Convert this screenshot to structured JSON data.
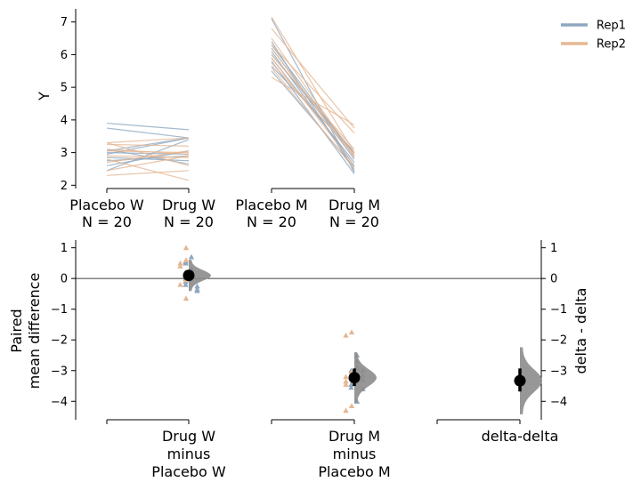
{
  "chart_data": [
    {
      "type": "line",
      "ylabel": "Y",
      "ylim": [
        1.9,
        7.4
      ],
      "yticks": [
        2,
        3,
        4,
        5,
        6,
        7
      ],
      "groups": [
        {
          "label1": "Placebo W",
          "label2": "N = 20"
        },
        {
          "label1": "Drug W",
          "label2": "N = 20"
        },
        {
          "label1": "Placebo M",
          "label2": "N = 20"
        },
        {
          "label1": "Drug M",
          "label2": "N = 20"
        }
      ],
      "legend": {
        "placement": "top-right",
        "entries": [
          {
            "name": "Rep1",
            "color": "#8ea7bf"
          },
          {
            "name": "Rep2",
            "color": "#e5b792"
          }
        ]
      },
      "colors": {
        "Rep1": "#8ea7bf",
        "Rep2": "#e5b792"
      },
      "pairs_W": {
        "Rep1": [
          [
            3.9,
            3.7
          ],
          [
            3.75,
            3.45
          ],
          [
            3.05,
            3.45
          ],
          [
            2.85,
            2.75
          ],
          [
            3.1,
            2.65
          ],
          [
            2.95,
            3.45
          ],
          [
            2.6,
            3.05
          ],
          [
            2.75,
            2.9
          ],
          [
            2.45,
            3.4
          ],
          [
            3.0,
            2.95
          ]
        ],
        "Rep2": [
          [
            3.3,
            3.45
          ],
          [
            3.25,
            3.2
          ],
          [
            3.05,
            3.0
          ],
          [
            2.9,
            2.85
          ],
          [
            2.8,
            2.15
          ],
          [
            3.3,
            2.6
          ],
          [
            2.45,
            2.9
          ],
          [
            2.3,
            2.45
          ],
          [
            3.1,
            2.95
          ],
          [
            2.7,
            3.05
          ]
        ]
      },
      "pairs_M": {
        "Rep1": [
          [
            6.4,
            2.45
          ],
          [
            6.3,
            2.9
          ],
          [
            6.1,
            2.6
          ],
          [
            6.0,
            3.0
          ],
          [
            5.9,
            2.7
          ],
          [
            5.8,
            2.35
          ],
          [
            5.65,
            3.0
          ],
          [
            5.5,
            2.55
          ],
          [
            6.2,
            2.8
          ],
          [
            7.1,
            2.4
          ]
        ],
        "Rep2": [
          [
            7.15,
            3.0
          ],
          [
            6.8,
            3.75
          ],
          [
            6.5,
            2.9
          ],
          [
            6.3,
            3.6
          ],
          [
            6.0,
            3.1
          ],
          [
            5.9,
            2.6
          ],
          [
            5.75,
            2.95
          ],
          [
            5.3,
            3.85
          ],
          [
            5.6,
            2.5
          ],
          [
            6.2,
            2.85
          ]
        ]
      }
    },
    {
      "type": "scatter",
      "ylabel": "Paired\nmean difference",
      "ylim": [
        -4.6,
        1.25
      ],
      "yticks": [
        1,
        0,
        -1,
        -2,
        -3,
        -4
      ],
      "right_ylabel": "delta - delta",
      "right_yticks": [
        1,
        0,
        -1,
        -2,
        -3,
        -4
      ],
      "groups": [
        {
          "label": [
            "Drug W",
            "minus",
            "Placebo W"
          ]
        },
        {
          "label": [
            "Drug M",
            "minus",
            "Placebo M"
          ]
        },
        {
          "label": [
            "delta-delta"
          ]
        }
      ],
      "diffs_W": {
        "Rep1": [
          0.7,
          0.55,
          0.5,
          0.3,
          0.2,
          0.1,
          0.0,
          -0.1,
          -0.2,
          -0.25,
          -0.35,
          -0.4
        ],
        "Rep2": [
          1.0,
          0.6,
          0.5,
          0.4,
          0.2,
          -0.05,
          -0.2,
          -0.65
        ]
      },
      "diffs_M": {
        "Rep1": [
          -2.5,
          -2.7,
          -2.9,
          -3.0,
          -3.0,
          -3.15,
          -3.25,
          -3.3,
          -3.45,
          -3.55,
          -3.6,
          -4.0
        ],
        "Rep2": [
          -1.75,
          -1.85,
          -3.05,
          -3.2,
          -3.35,
          -3.45,
          -4.15,
          -4.3
        ]
      },
      "effects": [
        {
          "mean": 0.1,
          "ci": [
            -0.08,
            0.27
          ]
        },
        {
          "mean": -3.23,
          "ci": [
            -3.5,
            -2.93
          ]
        },
        {
          "mean": -3.33,
          "ci": [
            -3.68,
            -2.93
          ]
        }
      ]
    }
  ]
}
